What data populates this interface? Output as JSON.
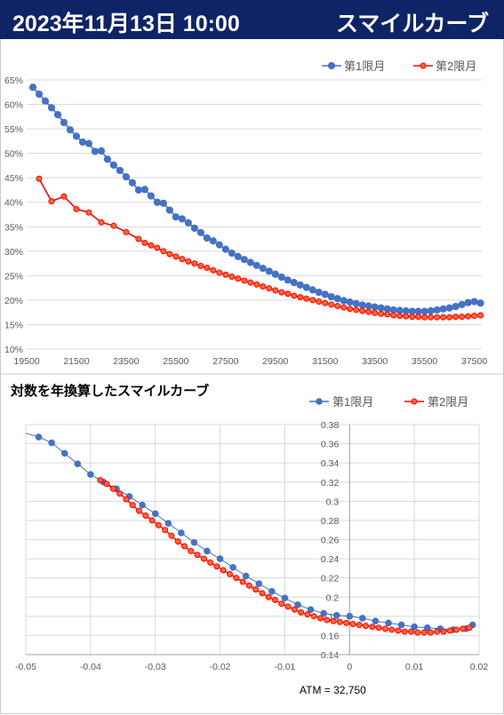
{
  "header": {
    "datetime": "2023年11月13日 10:00",
    "title": "スマイルカーブ"
  },
  "colors": {
    "header_bg": "#0f2466",
    "series1": "#4472c4",
    "series2": "#ff0000",
    "series2_marker": "#ff6633",
    "grid": "#d9d9d9"
  },
  "chart_data": [
    {
      "type": "line",
      "title": "",
      "xlim": [
        19500,
        37800
      ],
      "ylim": [
        0.1,
        0.65
      ],
      "x_ticks": [
        "19500",
        "21500",
        "23500",
        "25500",
        "27500",
        "29500",
        "31500",
        "33500",
        "35500",
        "37500"
      ],
      "y_ticks": [
        "10%",
        "15%",
        "20%",
        "25%",
        "30%",
        "35%",
        "40%",
        "45%",
        "50%",
        "55%",
        "60%",
        "65%"
      ],
      "legend": "top-right",
      "series": [
        {
          "name": "第1限月",
          "x": [
            19750,
            20000,
            20250,
            20500,
            20750,
            21000,
            21250,
            21500,
            21750,
            22000,
            22250,
            22500,
            22750,
            23000,
            23250,
            23500,
            23750,
            24000,
            24250,
            24500,
            24750,
            25000,
            25250,
            25500,
            25750,
            26000,
            26250,
            26500,
            26750,
            27000,
            27250,
            27500,
            27750,
            28000,
            28250,
            28500,
            28750,
            29000,
            29250,
            29500,
            29750,
            30000,
            30250,
            30500,
            30750,
            31000,
            31250,
            31500,
            31750,
            32000,
            32250,
            32500,
            32750,
            33000,
            33250,
            33500,
            33750,
            34000,
            34250,
            34500,
            34750,
            35000,
            35250,
            35500,
            35750,
            36000,
            36250,
            36500,
            36750,
            37000,
            37250,
            37500,
            37750
          ],
          "y": [
            0.635,
            0.621,
            0.607,
            0.593,
            0.579,
            0.563,
            0.548,
            0.535,
            0.523,
            0.52,
            0.504,
            0.505,
            0.488,
            0.476,
            0.465,
            0.452,
            0.44,
            0.425,
            0.426,
            0.413,
            0.4,
            0.398,
            0.384,
            0.37,
            0.366,
            0.358,
            0.347,
            0.338,
            0.327,
            0.321,
            0.313,
            0.304,
            0.296,
            0.289,
            0.283,
            0.277,
            0.271,
            0.265,
            0.259,
            0.253,
            0.247,
            0.241,
            0.236,
            0.231,
            0.226,
            0.221,
            0.216,
            0.212,
            0.207,
            0.203,
            0.199,
            0.196,
            0.193,
            0.19,
            0.188,
            0.186,
            0.184,
            0.182,
            0.18,
            0.179,
            0.178,
            0.177,
            0.177,
            0.177,
            0.178,
            0.18,
            0.182,
            0.184,
            0.187,
            0.191,
            0.195,
            0.197,
            0.194
          ]
        },
        {
          "name": "第2限月",
          "x": [
            20000,
            20500,
            21000,
            21500,
            22000,
            22500,
            23000,
            23500,
            24000,
            24250,
            24500,
            24750,
            25000,
            25250,
            25500,
            25750,
            26000,
            26250,
            26500,
            26750,
            27000,
            27250,
            27500,
            27750,
            28000,
            28250,
            28500,
            28750,
            29000,
            29250,
            29500,
            29750,
            30000,
            30250,
            30500,
            30750,
            31000,
            31250,
            31500,
            31750,
            32000,
            32250,
            32500,
            32750,
            33000,
            33250,
            33500,
            33750,
            34000,
            34250,
            34500,
            34750,
            35000,
            35250,
            35500,
            35750,
            36000,
            36250,
            36500,
            36750,
            37000,
            37250,
            37500,
            37750
          ],
          "y": [
            0.448,
            0.402,
            0.412,
            0.386,
            0.379,
            0.359,
            0.352,
            0.339,
            0.325,
            0.317,
            0.312,
            0.307,
            0.3,
            0.294,
            0.289,
            0.284,
            0.279,
            0.275,
            0.27,
            0.266,
            0.261,
            0.256,
            0.252,
            0.248,
            0.244,
            0.24,
            0.236,
            0.232,
            0.228,
            0.224,
            0.22,
            0.216,
            0.213,
            0.209,
            0.206,
            0.203,
            0.2,
            0.197,
            0.194,
            0.191,
            0.188,
            0.185,
            0.182,
            0.18,
            0.178,
            0.176,
            0.174,
            0.172,
            0.171,
            0.169,
            0.168,
            0.167,
            0.166,
            0.166,
            0.165,
            0.165,
            0.165,
            0.165,
            0.165,
            0.166,
            0.166,
            0.167,
            0.168,
            0.169
          ]
        }
      ]
    },
    {
      "type": "line",
      "title": "対数を年換算したスマイルカーブ",
      "xlim": [
        -0.05,
        0.02
      ],
      "ylim": [
        0.14,
        0.38
      ],
      "x_ticks": [
        "-0.05",
        "-0.04",
        "-0.03",
        "-0.02",
        "-0.01",
        "0",
        "0.01",
        "0.02"
      ],
      "y_ticks": [
        "0.14",
        "0.16",
        "0.18",
        "0.2",
        "0.22",
        "0.24",
        "0.26",
        "0.28",
        "0.3",
        "0.32",
        "0.34",
        "0.36",
        "0.38"
      ],
      "legend": "top-right",
      "annotation": "ATM = 32,750",
      "series": [
        {
          "name": "第1限月",
          "x": [
            -0.05,
            -0.048,
            -0.046,
            -0.044,
            -0.042,
            -0.04,
            -0.038,
            -0.036,
            -0.034,
            -0.032,
            -0.03,
            -0.028,
            -0.026,
            -0.024,
            -0.022,
            -0.02,
            -0.018,
            -0.016,
            -0.014,
            -0.012,
            -0.01,
            -0.008,
            -0.006,
            -0.004,
            -0.002,
            0.0,
            0.002,
            0.004,
            0.006,
            0.008,
            0.01,
            0.012,
            0.014,
            0.016,
            0.018,
            0.019
          ],
          "y": [
            0.371,
            0.367,
            0.361,
            0.35,
            0.339,
            0.328,
            0.32,
            0.313,
            0.305,
            0.296,
            0.287,
            0.277,
            0.267,
            0.257,
            0.248,
            0.24,
            0.231,
            0.222,
            0.214,
            0.206,
            0.199,
            0.192,
            0.187,
            0.183,
            0.181,
            0.18,
            0.178,
            0.175,
            0.173,
            0.171,
            0.169,
            0.168,
            0.167,
            0.166,
            0.167,
            0.171
          ]
        },
        {
          "name": "第2限月",
          "x": [
            -0.0385,
            -0.0375,
            -0.0365,
            -0.0355,
            -0.0345,
            -0.0335,
            -0.0325,
            -0.0315,
            -0.0305,
            -0.0295,
            -0.0285,
            -0.0275,
            -0.0265,
            -0.0255,
            -0.0245,
            -0.0235,
            -0.0225,
            -0.0215,
            -0.0205,
            -0.0195,
            -0.0185,
            -0.0175,
            -0.0165,
            -0.0155,
            -0.0145,
            -0.0135,
            -0.0125,
            -0.0115,
            -0.0105,
            -0.0095,
            -0.0085,
            -0.0075,
            -0.0065,
            -0.0055,
            -0.0045,
            -0.0035,
            -0.0025,
            -0.0015,
            -0.0005,
            0.0005,
            0.0015,
            0.0025,
            0.0035,
            0.0045,
            0.0055,
            0.0065,
            0.0075,
            0.0085,
            0.0095,
            0.0105,
            0.0115,
            0.0125,
            0.0135,
            0.0145,
            0.0155,
            0.0165,
            0.0175,
            0.0185
          ],
          "y": [
            0.322,
            0.318,
            0.313,
            0.308,
            0.302,
            0.296,
            0.29,
            0.285,
            0.28,
            0.275,
            0.27,
            0.264,
            0.258,
            0.253,
            0.248,
            0.244,
            0.24,
            0.236,
            0.232,
            0.228,
            0.224,
            0.22,
            0.216,
            0.212,
            0.208,
            0.204,
            0.2,
            0.197,
            0.193,
            0.19,
            0.187,
            0.184,
            0.182,
            0.18,
            0.178,
            0.176,
            0.175,
            0.174,
            0.173,
            0.172,
            0.171,
            0.17,
            0.169,
            0.168,
            0.167,
            0.166,
            0.165,
            0.164,
            0.164,
            0.163,
            0.163,
            0.163,
            0.164,
            0.164,
            0.165,
            0.166,
            0.167,
            0.168
          ]
        }
      ]
    }
  ]
}
